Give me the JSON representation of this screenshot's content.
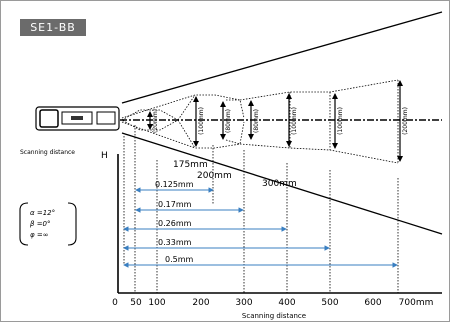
{
  "model_badge": "SE1-BB",
  "left_caption": "Scanning distance",
  "y_axis_label": "H",
  "x_axis_title": "Scanning distance",
  "angles": [
    "α =12°",
    "β =0°",
    "φ =∞"
  ],
  "x_ticks": [
    "0",
    "50",
    "100",
    "200",
    "300",
    "400",
    "500",
    "600",
    "700mm"
  ],
  "heights": [
    {
      "label": "(20mm)"
    },
    {
      "label": "(100mm)"
    },
    {
      "label": "(80mm)"
    },
    {
      "label": "(80mm)"
    },
    {
      "label": "(100mm)"
    },
    {
      "label": "(100mm)"
    },
    {
      "label": "(200mm)"
    }
  ],
  "distance_marks": [
    "175mm",
    "200mm",
    "300mm"
  ],
  "ranges": [
    {
      "label": "0.125mm"
    },
    {
      "label": "0.17mm"
    },
    {
      "label": "0.26mm"
    },
    {
      "label": "0.33mm"
    },
    {
      "label": "0.5mm"
    }
  ],
  "colors": {
    "range_arrow": "#3a7fc1",
    "badge": "#6b6b6b"
  }
}
